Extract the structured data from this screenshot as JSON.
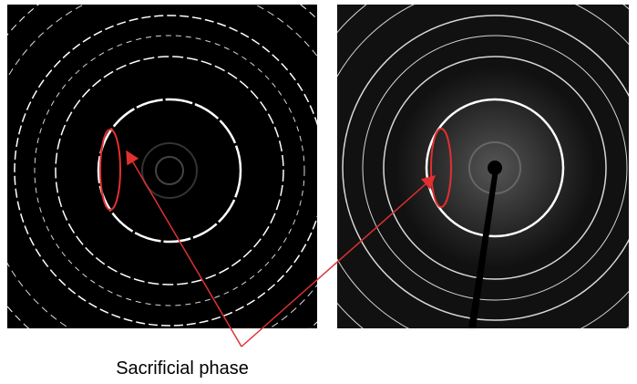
{
  "annotation": {
    "label": "Sacrificial phase"
  }
}
